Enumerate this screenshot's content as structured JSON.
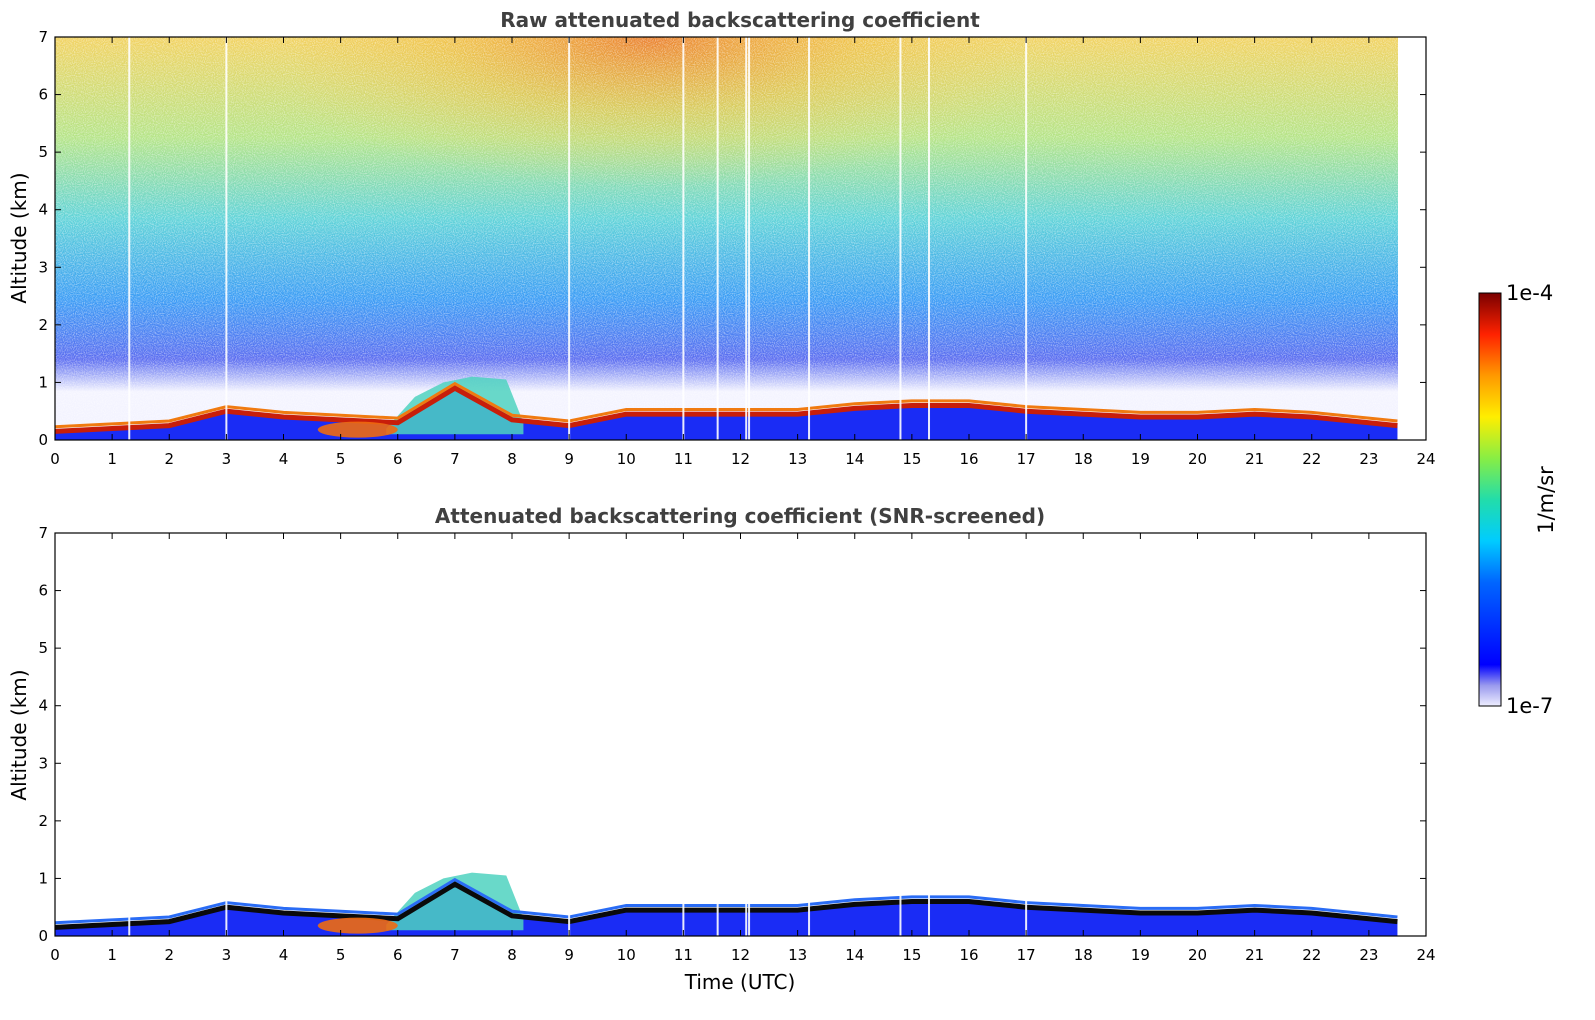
{
  "chart_data": [
    {
      "type": "heatmap",
      "title": "Raw attenuated backscattering coefficient",
      "ylabel": "Altitude (km)",
      "xlabel": "",
      "xlim": [
        0,
        24
      ],
      "ylim": [
        0,
        7
      ],
      "xticks": [
        "0",
        "1",
        "2",
        "3",
        "4",
        "5",
        "6",
        "7",
        "8",
        "9",
        "10",
        "11",
        "12",
        "13",
        "14",
        "15",
        "16",
        "17",
        "18",
        "19",
        "20",
        "21",
        "22",
        "23",
        "24"
      ],
      "yticks": [
        "0",
        "1",
        "2",
        "3",
        "4",
        "5",
        "6",
        "7"
      ],
      "data_time_range": [
        0,
        23.5
      ],
      "boundary_layer_top_km": {
        "time_h": [
          0,
          1,
          2,
          3,
          4,
          5,
          6,
          7,
          8,
          9,
          10,
          11,
          12,
          13,
          14,
          15,
          16,
          17,
          18,
          19,
          20,
          21,
          22,
          23,
          23.5
        ],
        "altitude_km": [
          0.15,
          0.2,
          0.25,
          0.5,
          0.4,
          0.35,
          0.3,
          0.9,
          0.35,
          0.25,
          0.45,
          0.45,
          0.45,
          0.45,
          0.55,
          0.6,
          0.6,
          0.5,
          0.45,
          0.4,
          0.4,
          0.45,
          0.4,
          0.3,
          0.25
        ]
      },
      "grid": false
    },
    {
      "type": "heatmap",
      "title": "Attenuated backscattering coefficient (SNR-screened)",
      "ylabel": "Altitude (km)",
      "xlabel": "Time (UTC)",
      "xlim": [
        0,
        24
      ],
      "ylim": [
        0,
        7
      ],
      "xticks": [
        "0",
        "1",
        "2",
        "3",
        "4",
        "5",
        "6",
        "7",
        "8",
        "9",
        "10",
        "11",
        "12",
        "13",
        "14",
        "15",
        "16",
        "17",
        "18",
        "19",
        "20",
        "21",
        "22",
        "23",
        "24"
      ],
      "yticks": [
        "0",
        "1",
        "2",
        "3",
        "4",
        "5",
        "6",
        "7"
      ],
      "data_time_range": [
        0,
        23.5
      ],
      "grid": false
    }
  ],
  "colorbar": {
    "label": "1/m/sr",
    "max_label": "1e-4",
    "min_label": "1e-7",
    "scale": "log",
    "colormap": "jet"
  },
  "colors": {
    "title": "#404040",
    "axes": "#000000"
  }
}
